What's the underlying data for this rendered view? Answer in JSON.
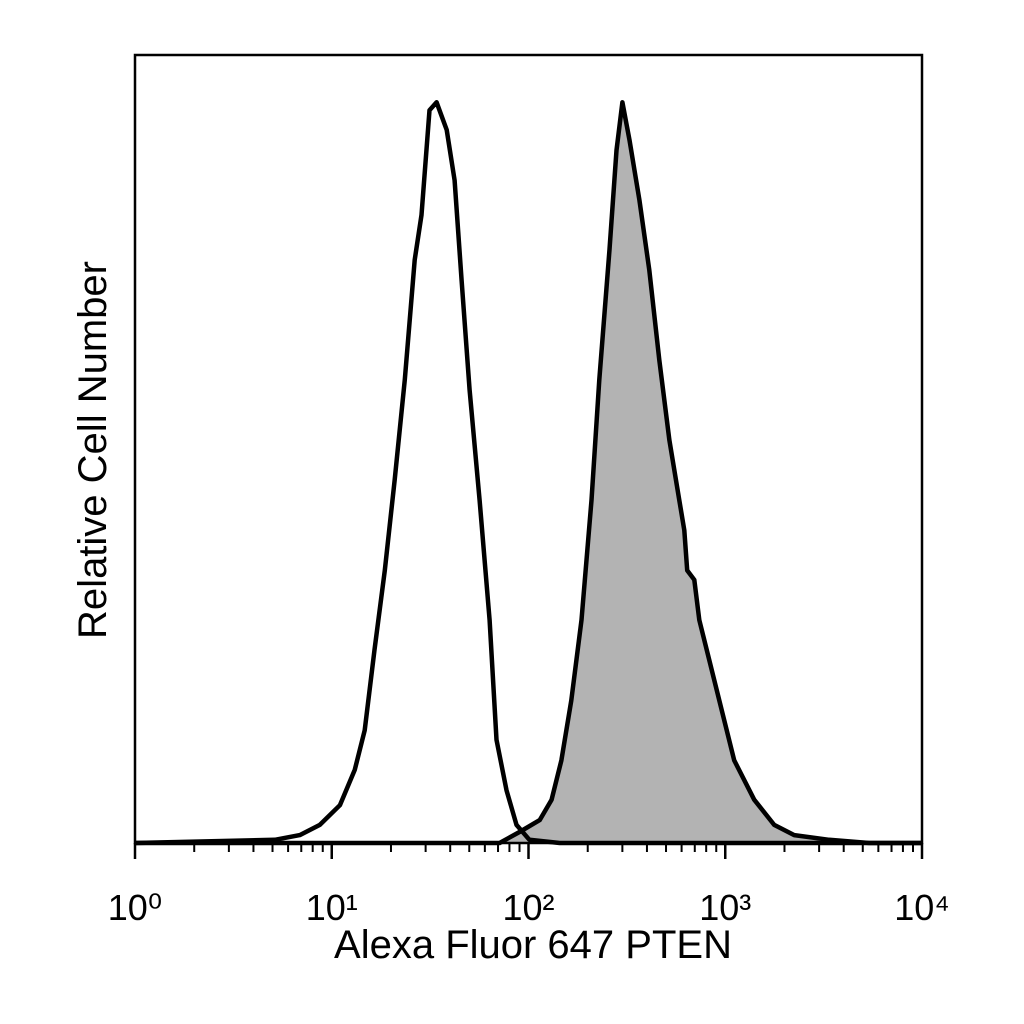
{
  "chart_data": {
    "type": "histogram-overlay",
    "x_label": "Alexa Fluor 647 PTEN",
    "y_label": "Relative Cell Number",
    "x_scale": "log",
    "xlim": [
      1,
      10000
    ],
    "ylim": [
      0,
      100
    ],
    "xticks": [
      {
        "value": 1,
        "label": "10⁰"
      },
      {
        "value": 10,
        "label": "10¹"
      },
      {
        "value": 100,
        "label": "10²"
      },
      {
        "value": 1000,
        "label": "10³"
      },
      {
        "value": 10000,
        "label": "10⁴"
      }
    ],
    "xminor_ticks": [
      2,
      3,
      4,
      5,
      6,
      7,
      8,
      9,
      20,
      30,
      40,
      50,
      60,
      70,
      80,
      90,
      200,
      300,
      400,
      500,
      600,
      700,
      800,
      900,
      2000,
      3000,
      4000,
      5000,
      6000,
      7000,
      8000,
      9000
    ],
    "series": [
      {
        "color": "#000000",
        "fill": "none",
        "x": [
          1,
          5.14,
          6.88,
          8.69,
          11.0,
          13.1,
          14.7,
          16.5,
          18.6,
          20.9,
          23.5,
          26.4,
          28.6,
          31.4,
          34.1,
          38.4,
          42.1,
          45.7,
          50.2,
          56.4,
          63.4,
          68.8,
          77.3,
          86.9,
          101,
          144,
          10000
        ],
        "values": [
          0,
          0.4,
          1.0,
          2.3,
          4.8,
          9.3,
          14.3,
          24.5,
          34.6,
          46.1,
          58.8,
          74.0,
          79.7,
          93.0,
          94.0,
          90.5,
          84.1,
          71.4,
          57.5,
          43.5,
          28.3,
          13.1,
          6.7,
          2.3,
          0.4,
          0,
          0
        ]
      },
      {
        "color": "#000000",
        "fill": "#b3b3b3",
        "x": [
          1,
          71.3,
          90,
          114,
          131,
          147,
          165,
          186,
          209,
          229,
          258,
          280,
          300,
          326,
          366,
          411,
          462,
          520,
          584,
          619,
          641,
          696,
          738,
          830,
          933,
          1111,
          1403,
          1774,
          2240,
          3373,
          5383,
          10000
        ],
        "values": [
          0,
          0,
          1.4,
          2.9,
          5.5,
          10.5,
          18.1,
          28.3,
          43.5,
          58.8,
          75.3,
          87.9,
          94.0,
          89.2,
          81.6,
          72.7,
          61.3,
          51.1,
          43.5,
          39.7,
          34.6,
          33.4,
          28.3,
          23.2,
          18.1,
          10.5,
          5.5,
          2.3,
          1.0,
          0.4,
          0,
          0
        ]
      }
    ]
  }
}
